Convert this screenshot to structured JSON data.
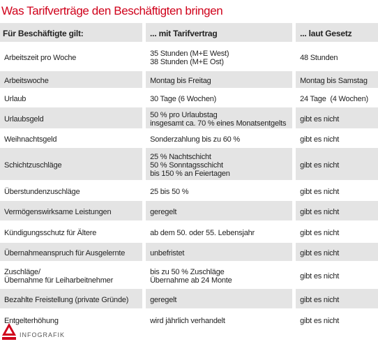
{
  "header": {
    "title": "Was Tarifverträge den Beschäftigten bringen"
  },
  "table": {
    "columns": [
      "Für Beschäftigte gilt:",
      "... mit Tarifvertrag",
      "... laut Gesetz"
    ],
    "rows": [
      [
        "Arbeitszeit pro Woche",
        "35 Stunden (M+E West)\n38 Stunden (M+E Ost)",
        "48 Stunden"
      ],
      [
        "Arbeitswoche",
        "Montag bis Freitag",
        "Montag bis Samstag"
      ],
      [
        "Urlaub",
        "30 Tage (6 Wochen)",
        "24 Tage  (4 Wochen)"
      ],
      [
        "Urlaubsgeld",
        "50 % pro Urlaubstag\ninsgesamt ca. 70 % eines Monatsentgelts",
        "gibt es nicht"
      ],
      [
        "Weihnachtsgeld",
        "Sonderzahlung bis zu 60 %",
        "gibt es nicht"
      ],
      [
        "Schichtzuschläge",
        "25 % Nachtschicht\n50 % Sonntagsschicht\nbis 150 % an Feiertagen",
        "gibt es nicht"
      ],
      [
        "Überstundenzuschläge",
        "25 bis 50 %",
        "gibt es nicht"
      ],
      [
        "Vermögenswirksame Leistungen",
        "geregelt",
        "gibt es nicht"
      ],
      [
        "Kündigungsschutz für Ältere",
        "ab dem 50. oder 55. Lebensjahr",
        "gibt es nicht"
      ],
      [
        "Übernahmeanspruch für Ausgelernte",
        "unbefristet",
        "gibt es nicht"
      ],
      [
        "Zuschläge/\nÜbernahme für Leiharbeitnehmer",
        "bis zu 50 % Zuschläge\nÜbernahme ab 24 Monte",
        "gibt es nicht"
      ],
      [
        "Bezahlte Freistellung (private Gründe)",
        "geregelt",
        "gibt es nicht"
      ],
      [
        "Entgelterhöhung",
        "wird jährlich verhandelt",
        "gibt es nicht"
      ]
    ]
  },
  "footer": {
    "label": "INFOGRAFIK"
  }
}
